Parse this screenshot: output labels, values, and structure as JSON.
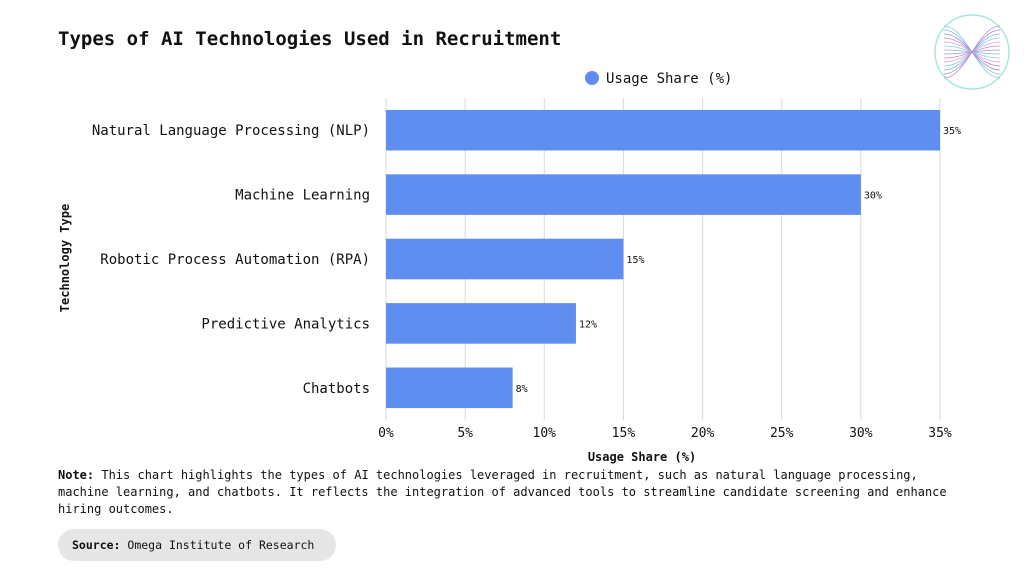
{
  "title": "Types of AI Technologies Used in Recruitment",
  "logo": {
    "icon": "twisted-mesh-logo-icon"
  },
  "note": {
    "label": "Note:",
    "text": "This chart highlights the types of AI technologies leveraged in recruitment, such as natural language processing, machine learning, and chatbots. It reflects the integration of advanced tools to streamline candidate screening and enhance hiring outcomes."
  },
  "source": {
    "label": "Source:",
    "text": "Omega Institute of Research"
  },
  "chart_data": {
    "type": "bar",
    "orientation": "horizontal",
    "categories": [
      "Natural Language Processing (NLP)",
      "Machine Learning",
      "Robotic Process Automation (RPA)",
      "Predictive Analytics",
      "Chatbots"
    ],
    "series": [
      {
        "name": "Usage Share (%)",
        "values": [
          35,
          30,
          15,
          12,
          8
        ]
      }
    ],
    "data_labels": [
      "35%",
      "30%",
      "15%",
      "12%",
      "8%"
    ],
    "xlabel": "Usage Share (%)",
    "ylabel": "Technology Type",
    "xlim": [
      0,
      35
    ],
    "x_ticks": [
      0,
      5,
      10,
      15,
      20,
      25,
      30,
      35
    ],
    "x_tick_labels": [
      "0%",
      "5%",
      "10%",
      "15%",
      "20%",
      "25%",
      "30%",
      "35%"
    ],
    "grid": "vertical",
    "legend_position": "top",
    "bar_color": "#5f8ef0"
  }
}
